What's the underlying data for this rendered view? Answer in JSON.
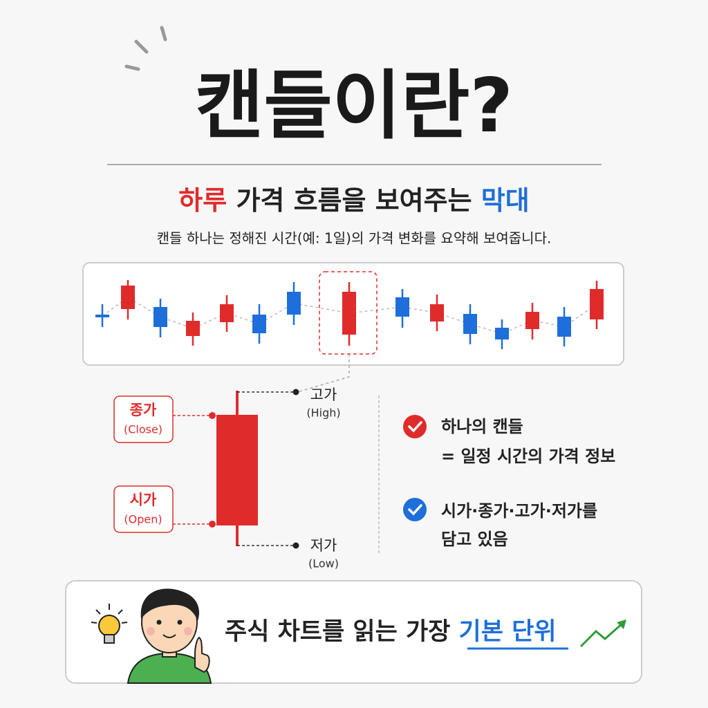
{
  "title": "캔들이란?",
  "subtitle": {
    "highlight_red": "하루",
    "middle": "가격 흐름을 보여주는",
    "highlight_blue": "막대"
  },
  "description": "캔들 하나는 정해진 시간(예: 1일)의 가격 변화를 요약해 보여줍니다.",
  "labels": {
    "close": {
      "label": "종가",
      "sub": "(Close)"
    },
    "open": {
      "label": "시가",
      "sub": "(Open)"
    },
    "high": {
      "label": "고가",
      "sub": "(High)"
    },
    "low": {
      "label": "저가",
      "sub": "(Low)"
    }
  },
  "points": [
    {
      "lines": [
        "하나의 캔들",
        "= 일정 시간의 가격 정보"
      ]
    },
    {
      "lines": [
        "시가·종가·고가·저가를",
        "담고 있음"
      ]
    }
  ],
  "banner": {
    "text": "주식 차트를 읽는 가장",
    "highlight": "기본 단위"
  }
}
